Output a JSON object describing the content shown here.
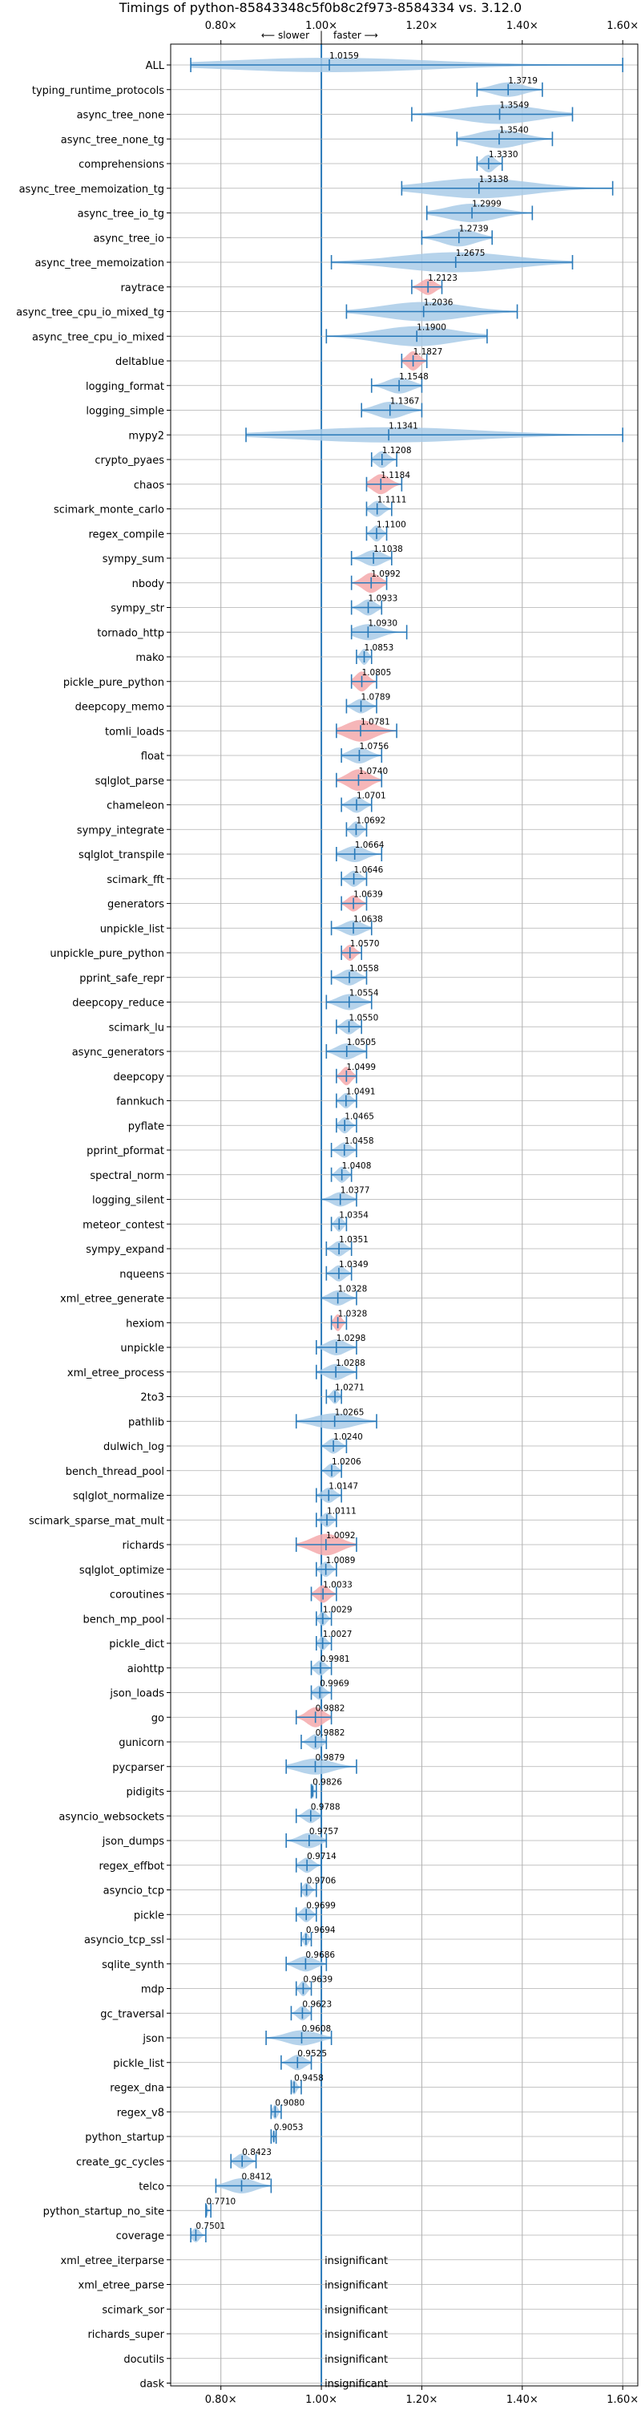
{
  "chart_data": {
    "type": "violin",
    "title": "Timings of python-85843348c5f0b8c2f973-8584334 vs. 3.12.0",
    "direction_labels": {
      "slower": "⟵ slower",
      "separator": "|",
      "faster": "faster ⟶"
    },
    "xlim": [
      0.7,
      1.63
    ],
    "x_ticks": [
      {
        "value": 0.8,
        "label": "0.80×"
      },
      {
        "value": 1.0,
        "label": "1.00×"
      },
      {
        "value": 1.2,
        "label": "1.20×"
      },
      {
        "value": 1.4,
        "label": "1.40×"
      },
      {
        "value": 1.6,
        "label": "1.60×"
      }
    ],
    "colors": {
      "violin": "#a9cbe8",
      "highlight": "#f4a9ab",
      "line": "#2a7ab9",
      "grid": "#b0b0b0"
    },
    "insignificant_label": "insignificant",
    "benchmarks": [
      {
        "name": "ALL",
        "value": 1.0159,
        "label": "1.0159",
        "lo": 0.74,
        "hi": 1.6,
        "w": 0.5,
        "hl": false
      },
      {
        "name": "typing_runtime_protocols",
        "value": 1.3719,
        "label": "1.3719",
        "lo": 1.31,
        "hi": 1.44,
        "w": 0.5,
        "hl": false
      },
      {
        "name": "async_tree_none",
        "value": 1.3549,
        "label": "1.3549",
        "lo": 1.18,
        "hi": 1.5,
        "w": 0.8,
        "hl": false
      },
      {
        "name": "async_tree_none_tg",
        "value": 1.354,
        "label": "1.3540",
        "lo": 1.27,
        "hi": 1.46,
        "w": 0.75,
        "hl": false
      },
      {
        "name": "comprehensions",
        "value": 1.333,
        "label": "1.3330",
        "lo": 1.31,
        "hi": 1.36,
        "w": 0.7,
        "hl": false
      },
      {
        "name": "async_tree_memoization_tg",
        "value": 1.3138,
        "label": "1.3138",
        "lo": 1.16,
        "hi": 1.58,
        "w": 0.85,
        "hl": false
      },
      {
        "name": "async_tree_io_tg",
        "value": 1.2999,
        "label": "1.2999",
        "lo": 1.21,
        "hi": 1.42,
        "w": 0.75,
        "hl": false
      },
      {
        "name": "async_tree_io",
        "value": 1.2739,
        "label": "1.2739",
        "lo": 1.2,
        "hi": 1.34,
        "w": 0.7,
        "hl": false
      },
      {
        "name": "async_tree_memoization",
        "value": 1.2675,
        "label": "1.2675",
        "lo": 1.02,
        "hi": 1.5,
        "w": 0.85,
        "hl": false
      },
      {
        "name": "raytrace",
        "value": 1.2123,
        "label": "1.2123",
        "lo": 1.18,
        "hi": 1.24,
        "w": 0.6,
        "hl": true
      },
      {
        "name": "async_tree_cpu_io_mixed_tg",
        "value": 1.2036,
        "label": "1.2036",
        "lo": 1.05,
        "hi": 1.39,
        "w": 0.8,
        "hl": false
      },
      {
        "name": "async_tree_cpu_io_mixed",
        "value": 1.19,
        "label": "1.1900",
        "lo": 1.01,
        "hi": 1.33,
        "w": 0.85,
        "hl": false
      },
      {
        "name": "deltablue",
        "value": 1.1827,
        "label": "1.1827",
        "lo": 1.16,
        "hi": 1.21,
        "w": 0.8,
        "hl": true
      },
      {
        "name": "logging_format",
        "value": 1.1548,
        "label": "1.1548",
        "lo": 1.1,
        "hi": 1.2,
        "w": 0.6,
        "hl": false
      },
      {
        "name": "logging_simple",
        "value": 1.1367,
        "label": "1.1367",
        "lo": 1.08,
        "hi": 1.2,
        "w": 0.65,
        "hl": false
      },
      {
        "name": "mypy2",
        "value": 1.1341,
        "label": "1.1341",
        "lo": 0.85,
        "hi": 1.6,
        "w": 0.55,
        "hl": false
      },
      {
        "name": "crypto_pyaes",
        "value": 1.1208,
        "label": "1.1208",
        "lo": 1.1,
        "hi": 1.15,
        "w": 0.65,
        "hl": false
      },
      {
        "name": "chaos",
        "value": 1.1184,
        "label": "1.1184",
        "lo": 1.09,
        "hi": 1.16,
        "w": 0.85,
        "hl": true
      },
      {
        "name": "scimark_monte_carlo",
        "value": 1.1111,
        "label": "1.1111",
        "lo": 1.09,
        "hi": 1.14,
        "w": 0.6,
        "hl": false
      },
      {
        "name": "regex_compile",
        "value": 1.11,
        "label": "1.1100",
        "lo": 1.09,
        "hi": 1.13,
        "w": 0.6,
        "hl": false
      },
      {
        "name": "sympy_sum",
        "value": 1.1038,
        "label": "1.1038",
        "lo": 1.06,
        "hi": 1.14,
        "w": 0.6,
        "hl": false
      },
      {
        "name": "nbody",
        "value": 1.0992,
        "label": "1.0992",
        "lo": 1.06,
        "hi": 1.13,
        "w": 0.85,
        "hl": true
      },
      {
        "name": "sympy_str",
        "value": 1.0933,
        "label": "1.0933",
        "lo": 1.06,
        "hi": 1.12,
        "w": 0.6,
        "hl": false
      },
      {
        "name": "tornado_http",
        "value": 1.093,
        "label": "1.0930",
        "lo": 1.06,
        "hi": 1.17,
        "w": 0.6,
        "hl": false
      },
      {
        "name": "mako",
        "value": 1.0853,
        "label": "1.0853",
        "lo": 1.07,
        "hi": 1.1,
        "w": 0.6,
        "hl": false
      },
      {
        "name": "pickle_pure_python",
        "value": 1.0805,
        "label": "1.0805",
        "lo": 1.06,
        "hi": 1.11,
        "w": 0.85,
        "hl": true
      },
      {
        "name": "deepcopy_memo",
        "value": 1.0789,
        "label": "1.0789",
        "lo": 1.05,
        "hi": 1.11,
        "w": 0.5,
        "hl": false
      },
      {
        "name": "tomli_loads",
        "value": 1.0781,
        "label": "1.0781",
        "lo": 1.03,
        "hi": 1.15,
        "w": 0.95,
        "hl": true
      },
      {
        "name": "float",
        "value": 1.0756,
        "label": "1.0756",
        "lo": 1.04,
        "hi": 1.12,
        "w": 0.6,
        "hl": false
      },
      {
        "name": "sqlglot_parse",
        "value": 1.074,
        "label": "1.0740",
        "lo": 1.03,
        "hi": 1.12,
        "w": 0.95,
        "hl": true
      },
      {
        "name": "chameleon",
        "value": 1.0701,
        "label": "1.0701",
        "lo": 1.04,
        "hi": 1.1,
        "w": 0.6,
        "hl": false
      },
      {
        "name": "sympy_integrate",
        "value": 1.0692,
        "label": "1.0692",
        "lo": 1.05,
        "hi": 1.09,
        "w": 0.6,
        "hl": false
      },
      {
        "name": "sqlglot_transpile",
        "value": 1.0664,
        "label": "1.0664",
        "lo": 1.03,
        "hi": 1.12,
        "w": 0.6,
        "hl": false
      },
      {
        "name": "scimark_fft",
        "value": 1.0646,
        "label": "1.0646",
        "lo": 1.04,
        "hi": 1.09,
        "w": 0.6,
        "hl": false
      },
      {
        "name": "generators",
        "value": 1.0639,
        "label": "1.0639",
        "lo": 1.04,
        "hi": 1.09,
        "w": 0.6,
        "hl": true
      },
      {
        "name": "unpickle_list",
        "value": 1.0638,
        "label": "1.0638",
        "lo": 1.02,
        "hi": 1.1,
        "w": 0.55,
        "hl": false
      },
      {
        "name": "unpickle_pure_python",
        "value": 1.057,
        "label": "1.0570",
        "lo": 1.04,
        "hi": 1.08,
        "w": 0.6,
        "hl": true
      },
      {
        "name": "pprint_safe_repr",
        "value": 1.0558,
        "label": "1.0558",
        "lo": 1.02,
        "hi": 1.09,
        "w": 0.6,
        "hl": false
      },
      {
        "name": "deepcopy_reduce",
        "value": 1.0554,
        "label": "1.0554",
        "lo": 1.01,
        "hi": 1.1,
        "w": 0.6,
        "hl": false
      },
      {
        "name": "scimark_lu",
        "value": 1.055,
        "label": "1.0550",
        "lo": 1.03,
        "hi": 1.08,
        "w": 0.55,
        "hl": false
      },
      {
        "name": "async_generators",
        "value": 1.0505,
        "label": "1.0505",
        "lo": 1.01,
        "hi": 1.09,
        "w": 0.6,
        "hl": false
      },
      {
        "name": "deepcopy",
        "value": 1.0499,
        "label": "1.0499",
        "lo": 1.03,
        "hi": 1.07,
        "w": 0.75,
        "hl": true
      },
      {
        "name": "fannkuch",
        "value": 1.0491,
        "label": "1.0491",
        "lo": 1.03,
        "hi": 1.07,
        "w": 0.55,
        "hl": false
      },
      {
        "name": "pyflate",
        "value": 1.0465,
        "label": "1.0465",
        "lo": 1.03,
        "hi": 1.07,
        "w": 0.6,
        "hl": false
      },
      {
        "name": "pprint_pformat",
        "value": 1.0458,
        "label": "1.0458",
        "lo": 1.02,
        "hi": 1.07,
        "w": 0.55,
        "hl": false
      },
      {
        "name": "spectral_norm",
        "value": 1.0408,
        "label": "1.0408",
        "lo": 1.02,
        "hi": 1.06,
        "w": 0.6,
        "hl": false
      },
      {
        "name": "logging_silent",
        "value": 1.0377,
        "label": "1.0377",
        "lo": 1.0,
        "hi": 1.07,
        "w": 0.5,
        "hl": false
      },
      {
        "name": "meteor_contest",
        "value": 1.0354,
        "label": "1.0354",
        "lo": 1.02,
        "hi": 1.05,
        "w": 0.55,
        "hl": false
      },
      {
        "name": "sympy_expand",
        "value": 1.0351,
        "label": "1.0351",
        "lo": 1.01,
        "hi": 1.06,
        "w": 0.55,
        "hl": false
      },
      {
        "name": "nqueens",
        "value": 1.0349,
        "label": "1.0349",
        "lo": 1.01,
        "hi": 1.06,
        "w": 0.6,
        "hl": false
      },
      {
        "name": "xml_etree_generate",
        "value": 1.0328,
        "label": "1.0328",
        "lo": 1.0,
        "hi": 1.07,
        "w": 0.55,
        "hl": false
      },
      {
        "name": "hexiom",
        "value": 1.0328,
        "label": "1.0328",
        "lo": 1.02,
        "hi": 1.05,
        "w": 0.65,
        "hl": true
      },
      {
        "name": "unpickle",
        "value": 1.0298,
        "label": "1.0298",
        "lo": 0.99,
        "hi": 1.07,
        "w": 0.6,
        "hl": false
      },
      {
        "name": "xml_etree_process",
        "value": 1.0288,
        "label": "1.0288",
        "lo": 0.99,
        "hi": 1.07,
        "w": 0.6,
        "hl": false
      },
      {
        "name": "2to3",
        "value": 1.0271,
        "label": "1.0271",
        "lo": 1.01,
        "hi": 1.04,
        "w": 0.5,
        "hl": false
      },
      {
        "name": "pathlib",
        "value": 1.0265,
        "label": "1.0265",
        "lo": 0.95,
        "hi": 1.11,
        "w": 0.6,
        "hl": false
      },
      {
        "name": "dulwich_log",
        "value": 1.024,
        "label": "1.0240",
        "lo": 1.0,
        "hi": 1.05,
        "w": 0.55,
        "hl": false
      },
      {
        "name": "bench_thread_pool",
        "value": 1.0206,
        "label": "1.0206",
        "lo": 1.0,
        "hi": 1.04,
        "w": 0.5,
        "hl": false
      },
      {
        "name": "sqlglot_normalize",
        "value": 1.0147,
        "label": "1.0147",
        "lo": 0.99,
        "hi": 1.04,
        "w": 0.55,
        "hl": false
      },
      {
        "name": "scimark_sparse_mat_mult",
        "value": 1.0111,
        "label": "1.0111",
        "lo": 0.99,
        "hi": 1.03,
        "w": 0.5,
        "hl": false
      },
      {
        "name": "richards",
        "value": 1.0092,
        "label": "1.0092",
        "lo": 0.95,
        "hi": 1.07,
        "w": 0.95,
        "hl": true
      },
      {
        "name": "sqlglot_optimize",
        "value": 1.0089,
        "label": "1.0089",
        "lo": 0.99,
        "hi": 1.03,
        "w": 0.55,
        "hl": false
      },
      {
        "name": "coroutines",
        "value": 1.0033,
        "label": "1.0033",
        "lo": 0.98,
        "hi": 1.03,
        "w": 0.7,
        "hl": true
      },
      {
        "name": "bench_mp_pool",
        "value": 1.0029,
        "label": "1.0029",
        "lo": 0.99,
        "hi": 1.02,
        "w": 0.5,
        "hl": false
      },
      {
        "name": "pickle_dict",
        "value": 1.0027,
        "label": "1.0027",
        "lo": 0.99,
        "hi": 1.02,
        "w": 0.5,
        "hl": false
      },
      {
        "name": "aiohttp",
        "value": 0.9981,
        "label": "0.9981",
        "lo": 0.98,
        "hi": 1.02,
        "w": 0.55,
        "hl": false
      },
      {
        "name": "json_loads",
        "value": 0.9969,
        "label": "0.9969",
        "lo": 0.98,
        "hi": 1.02,
        "w": 0.5,
        "hl": false
      },
      {
        "name": "go",
        "value": 0.9882,
        "label": "0.9882",
        "lo": 0.95,
        "hi": 1.02,
        "w": 0.85,
        "hl": true
      },
      {
        "name": "gunicorn",
        "value": 0.9882,
        "label": "0.9882",
        "lo": 0.96,
        "hi": 1.01,
        "w": 0.55,
        "hl": false
      },
      {
        "name": "pycparser",
        "value": 0.9879,
        "label": "0.9879",
        "lo": 0.93,
        "hi": 1.07,
        "w": 0.6,
        "hl": false
      },
      {
        "name": "pidigits",
        "value": 0.9826,
        "label": "0.9826",
        "lo": 0.98,
        "hi": 0.99,
        "w": 0.5,
        "hl": false
      },
      {
        "name": "asyncio_websockets",
        "value": 0.9788,
        "label": "0.9788",
        "lo": 0.95,
        "hi": 1.0,
        "w": 0.5,
        "hl": false
      },
      {
        "name": "json_dumps",
        "value": 0.9757,
        "label": "0.9757",
        "lo": 0.93,
        "hi": 1.01,
        "w": 0.55,
        "hl": false
      },
      {
        "name": "regex_effbot",
        "value": 0.9714,
        "label": "0.9714",
        "lo": 0.95,
        "hi": 1.0,
        "w": 0.55,
        "hl": false
      },
      {
        "name": "asyncio_tcp",
        "value": 0.9706,
        "label": "0.9706",
        "lo": 0.96,
        "hi": 0.99,
        "w": 0.5,
        "hl": false
      },
      {
        "name": "pickle",
        "value": 0.9699,
        "label": "0.9699",
        "lo": 0.95,
        "hi": 0.99,
        "w": 0.55,
        "hl": false
      },
      {
        "name": "asyncio_tcp_ssl",
        "value": 0.9694,
        "label": "0.9694",
        "lo": 0.96,
        "hi": 0.98,
        "w": 0.5,
        "hl": false
      },
      {
        "name": "sqlite_synth",
        "value": 0.9686,
        "label": "0.9686",
        "lo": 0.93,
        "hi": 1.01,
        "w": 0.55,
        "hl": false
      },
      {
        "name": "mdp",
        "value": 0.9639,
        "label": "0.9639",
        "lo": 0.95,
        "hi": 0.98,
        "w": 0.55,
        "hl": false
      },
      {
        "name": "gc_traversal",
        "value": 0.9623,
        "label": "0.9623",
        "lo": 0.94,
        "hi": 0.98,
        "w": 0.5,
        "hl": false
      },
      {
        "name": "json",
        "value": 0.9608,
        "label": "0.9608",
        "lo": 0.89,
        "hi": 1.02,
        "w": 0.55,
        "hl": false
      },
      {
        "name": "pickle_list",
        "value": 0.9525,
        "label": "0.9525",
        "lo": 0.92,
        "hi": 0.98,
        "w": 0.55,
        "hl": false
      },
      {
        "name": "regex_dna",
        "value": 0.9458,
        "label": "0.9458",
        "lo": 0.94,
        "hi": 0.96,
        "w": 0.5,
        "hl": false
      },
      {
        "name": "regex_v8",
        "value": 0.908,
        "label": "0.9080",
        "lo": 0.9,
        "hi": 0.92,
        "w": 0.5,
        "hl": false
      },
      {
        "name": "python_startup",
        "value": 0.9053,
        "label": "0.9053",
        "lo": 0.9,
        "hi": 0.91,
        "w": 0.45,
        "hl": false
      },
      {
        "name": "create_gc_cycles",
        "value": 0.8423,
        "label": "0.8423",
        "lo": 0.82,
        "hi": 0.87,
        "w": 0.55,
        "hl": false
      },
      {
        "name": "telco",
        "value": 0.8412,
        "label": "0.8412",
        "lo": 0.79,
        "hi": 0.9,
        "w": 0.55,
        "hl": false
      },
      {
        "name": "python_startup_no_site",
        "value": 0.771,
        "label": "0.7710",
        "lo": 0.77,
        "hi": 0.78,
        "w": 0.45,
        "hl": false
      },
      {
        "name": "coverage",
        "value": 0.7501,
        "label": "0.7501",
        "lo": 0.74,
        "hi": 0.77,
        "w": 0.5,
        "hl": false
      },
      {
        "name": "xml_etree_iterparse",
        "insignificant": true
      },
      {
        "name": "xml_etree_parse",
        "insignificant": true
      },
      {
        "name": "scimark_sor",
        "insignificant": true
      },
      {
        "name": "richards_super",
        "insignificant": true
      },
      {
        "name": "docutils",
        "insignificant": true
      },
      {
        "name": "dask",
        "insignificant": true
      }
    ]
  }
}
